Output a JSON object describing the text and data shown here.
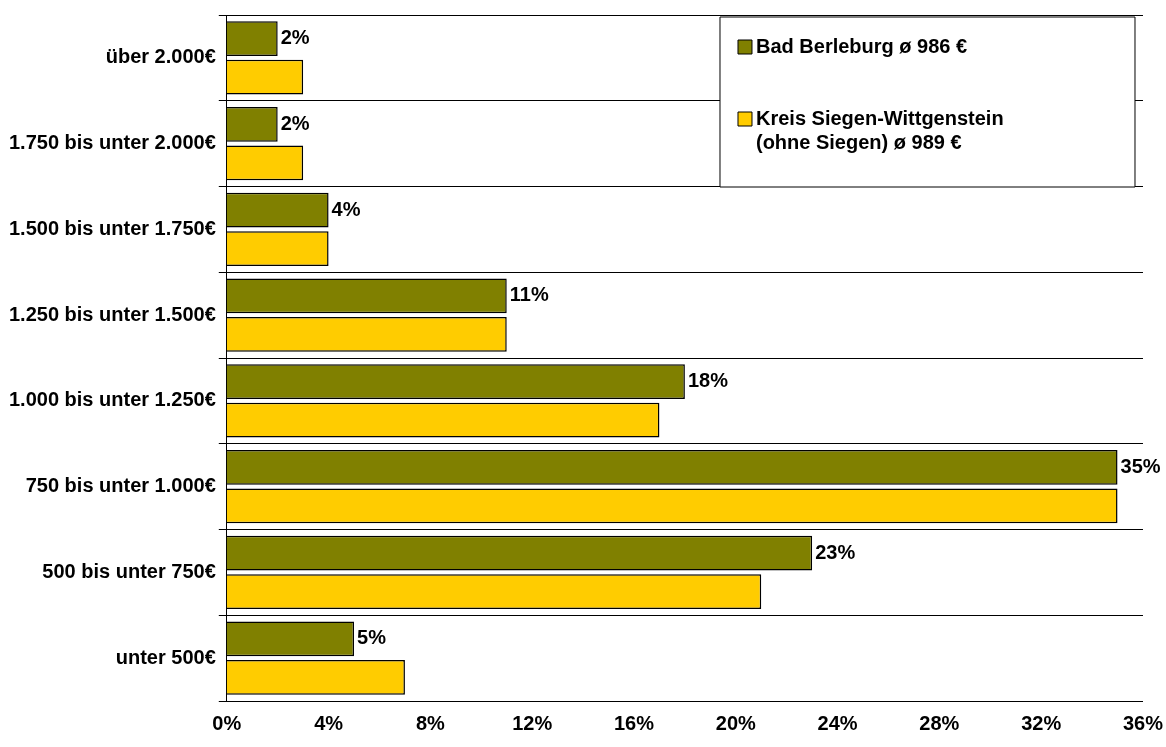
{
  "chart_data": {
    "type": "bar",
    "orientation": "horizontal",
    "categories": [
      "über 2.000€",
      "1.750 bis unter 2.000€",
      "1.500 bis unter 1.750€",
      "1.250 bis unter 1.500€",
      "1.000 bis unter 1.250€",
      "750 bis unter 1.000€",
      "500 bis unter 750€",
      "unter 500€"
    ],
    "series": [
      {
        "name": "Bad Berleburg ø 986 €",
        "color": "#808000",
        "values": [
          2,
          2,
          4,
          11,
          18,
          35,
          23,
          5
        ],
        "value_labels": [
          "2%",
          "2%",
          "4%",
          "11%",
          "18%",
          "35%",
          "23%",
          "5%"
        ]
      },
      {
        "name": "Kreis Siegen-Wittgenstein (ohne Siegen) ø 989 €",
        "color": "#ffcc00",
        "values": [
          3,
          3,
          4,
          11,
          17,
          35,
          21,
          7
        ]
      }
    ],
    "xlim": [
      0,
      36
    ],
    "xticks": [
      {
        "value": 0,
        "label": "0%"
      },
      {
        "value": 4,
        "label": "4%"
      },
      {
        "value": 8,
        "label": "8%"
      },
      {
        "value": 12,
        "label": "12%"
      },
      {
        "value": 16,
        "label": "16%"
      },
      {
        "value": 20,
        "label": "20%"
      },
      {
        "value": 24,
        "label": "24%"
      },
      {
        "value": 28,
        "label": "28%"
      },
      {
        "value": 32,
        "label": "32%"
      },
      {
        "value": 36,
        "label": "36%"
      }
    ],
    "grid": "y",
    "legend": "top right"
  }
}
